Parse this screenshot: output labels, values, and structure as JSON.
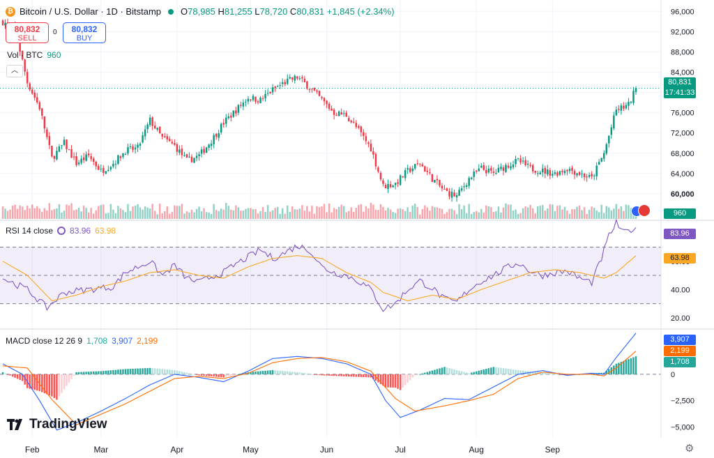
{
  "header": {
    "coin_icon": "bitcoin-icon",
    "title": "Bitcoin / U.S. Dollar · 1D · Bitstamp",
    "o_label": "O",
    "o": "78,985",
    "h_label": "H",
    "h": "81,255",
    "l_label": "L",
    "l": "78,720",
    "c_label": "C",
    "c": "80,831",
    "change": "+1,845 (+2.34%)"
  },
  "trade": {
    "sell_price": "80,832",
    "sell_label": "SELL",
    "spread": "0",
    "buy_price": "80,832",
    "buy_label": "BUY"
  },
  "volume": {
    "label": "Vol · BTC",
    "value": "960"
  },
  "rsi": {
    "label": "RSI 14 close",
    "value1": "83.96",
    "value2": "63.98"
  },
  "macd": {
    "label": "MACD close 12 26 9",
    "hist": "1,708",
    "macd": "3,907",
    "signal": "2,199"
  },
  "price_tag": {
    "price": "80,831",
    "countdown": "17:41:33"
  },
  "logo": "TradingView",
  "colors": {
    "up": "#089981",
    "down": "#f23645",
    "rsi": "#7e57c2",
    "rsi_ma": "#f9a825",
    "macd": "#2962ff",
    "signal": "#ff6d00"
  },
  "chart_data": [
    {
      "type": "candlestick",
      "title": "Bitcoin / U.S. Dollar · 1D · Bitstamp",
      "x": [
        "Feb",
        "Mar",
        "Apr",
        "May",
        "Jun",
        "Jul",
        "Aug",
        "Sep"
      ],
      "y_ticks": [
        60000,
        64000,
        68000,
        72000,
        76000,
        80000,
        84000,
        88000,
        92000,
        96000
      ],
      "y_tick_labels": [
        "60,000",
        "64,000",
        "68,000",
        "72,000",
        "76,000",
        "80,000",
        "84,000",
        "88,000",
        "92,000",
        "96,000"
      ],
      "y_range": [
        56000,
        97000
      ],
      "last_close": 80831,
      "close_path": [
        [
          0,
          94000
        ],
        [
          5,
          92500
        ],
        [
          10,
          82000
        ],
        [
          15,
          77000
        ],
        [
          20,
          67000
        ],
        [
          25,
          70000
        ],
        [
          30,
          66000
        ],
        [
          35,
          67500
        ],
        [
          40,
          64500
        ],
        [
          45,
          66000
        ],
        [
          50,
          68500
        ],
        [
          55,
          69000
        ],
        [
          60,
          74500
        ],
        [
          65,
          71000
        ],
        [
          70,
          69500
        ],
        [
          75,
          66500
        ],
        [
          80,
          67500
        ],
        [
          85,
          70500
        ],
        [
          90,
          74000
        ],
        [
          95,
          76500
        ],
        [
          100,
          79000
        ],
        [
          105,
          78500
        ],
        [
          110,
          80500
        ],
        [
          115,
          82000
        ],
        [
          120,
          83000
        ],
        [
          125,
          81000
        ],
        [
          130,
          78500
        ],
        [
          135,
          76000
        ],
        [
          140,
          75500
        ],
        [
          145,
          72500
        ],
        [
          150,
          69000
        ],
        [
          155,
          61500
        ],
        [
          160,
          62000
        ],
        [
          165,
          64500
        ],
        [
          170,
          66000
        ],
        [
          175,
          63000
        ],
        [
          180,
          60500
        ],
        [
          185,
          59500
        ],
        [
          190,
          63000
        ],
        [
          195,
          65000
        ],
        [
          200,
          64000
        ],
        [
          205,
          65500
        ],
        [
          210,
          66500
        ],
        [
          215,
          65000
        ],
        [
          220,
          64500
        ],
        [
          225,
          64000
        ],
        [
          230,
          65000
        ],
        [
          235,
          64000
        ],
        [
          240,
          63000
        ],
        [
          245,
          68000
        ],
        [
          250,
          76500
        ],
        [
          255,
          77500
        ],
        [
          258,
          80831
        ]
      ],
      "volume_last": 960
    },
    {
      "type": "line",
      "title": "RSI 14 close",
      "y_ticks": [
        20,
        40,
        60,
        80
      ],
      "y_tick_labels": [
        "20.00",
        "40.00",
        "60.00",
        "80.00"
      ],
      "y_range": [
        14,
        88
      ],
      "bands": [
        30,
        70
      ],
      "midline": 50,
      "series": [
        {
          "name": "RSI",
          "last": 83.96,
          "points": [
            [
              0,
              48
            ],
            [
              10,
              40
            ],
            [
              18,
              27
            ],
            [
              25,
              38
            ],
            [
              35,
              40
            ],
            [
              45,
              42
            ],
            [
              50,
              52
            ],
            [
              55,
              56
            ],
            [
              60,
              60
            ],
            [
              65,
              50
            ],
            [
              70,
              57
            ],
            [
              75,
              48
            ],
            [
              80,
              45
            ],
            [
              85,
              49
            ],
            [
              90,
              52
            ],
            [
              95,
              58
            ],
            [
              100,
              63
            ],
            [
              105,
              68
            ],
            [
              110,
              62
            ],
            [
              115,
              66
            ],
            [
              120,
              71
            ],
            [
              125,
              68
            ],
            [
              130,
              56
            ],
            [
              135,
              52
            ],
            [
              140,
              50
            ],
            [
              145,
              46
            ],
            [
              150,
              40
            ],
            [
              155,
              26
            ],
            [
              160,
              30
            ],
            [
              165,
              40
            ],
            [
              170,
              46
            ],
            [
              175,
              41
            ],
            [
              180,
              33
            ],
            [
              185,
              31
            ],
            [
              190,
              40
            ],
            [
              195,
              46
            ],
            [
              200,
              50
            ],
            [
              205,
              55
            ],
            [
              210,
              59
            ],
            [
              215,
              53
            ],
            [
              220,
              50
            ],
            [
              225,
              52
            ],
            [
              230,
              53
            ],
            [
              235,
              48
            ],
            [
              240,
              45
            ],
            [
              244,
              62
            ],
            [
              247,
              78
            ],
            [
              250,
              87
            ],
            [
              253,
              80
            ],
            [
              258,
              83.96
            ]
          ]
        },
        {
          "name": "RSI MA",
          "last": 63.98,
          "points": [
            [
              0,
              60
            ],
            [
              10,
              50
            ],
            [
              20,
              32
            ],
            [
              30,
              36
            ],
            [
              40,
              42
            ],
            [
              50,
              46
            ],
            [
              60,
              52
            ],
            [
              70,
              54
            ],
            [
              80,
              50
            ],
            [
              90,
              48
            ],
            [
              100,
              56
            ],
            [
              110,
              62
            ],
            [
              120,
              64
            ],
            [
              130,
              62
            ],
            [
              140,
              52
            ],
            [
              150,
              45
            ],
            [
              155,
              38
            ],
            [
              165,
              32
            ],
            [
              175,
              36
            ],
            [
              185,
              33
            ],
            [
              195,
              40
            ],
            [
              205,
              46
            ],
            [
              215,
              52
            ],
            [
              225,
              54
            ],
            [
              235,
              52
            ],
            [
              245,
              48
            ],
            [
              250,
              52
            ],
            [
              258,
              63.98
            ]
          ]
        }
      ]
    },
    {
      "type": "line",
      "title": "MACD close 12 26 9",
      "y_ticks": [
        -5000,
        -2500,
        0
      ],
      "y_tick_labels": [
        "−5,000",
        "−2,500",
        "0"
      ],
      "y_range": [
        -5900,
        4300
      ],
      "series": [
        {
          "name": "MACD",
          "last": 3907,
          "points": [
            [
              0,
              1000
            ],
            [
              8,
              0
            ],
            [
              15,
              -2500
            ],
            [
              22,
              -5300
            ],
            [
              30,
              -4600
            ],
            [
              40,
              -3500
            ],
            [
              50,
              -2300
            ],
            [
              60,
              -1000
            ],
            [
              70,
              0
            ],
            [
              80,
              -300
            ],
            [
              90,
              -700
            ],
            [
              100,
              300
            ],
            [
              110,
              1500
            ],
            [
              120,
              1700
            ],
            [
              130,
              1500
            ],
            [
              140,
              1000
            ],
            [
              150,
              0
            ],
            [
              156,
              -2500
            ],
            [
              162,
              -4100
            ],
            [
              170,
              -3400
            ],
            [
              180,
              -2300
            ],
            [
              190,
              -2400
            ],
            [
              200,
              -1200
            ],
            [
              210,
              0
            ],
            [
              220,
              350
            ],
            [
              230,
              -100
            ],
            [
              240,
              100
            ],
            [
              245,
              0
            ],
            [
              250,
              1600
            ],
            [
              258,
              3907
            ]
          ]
        },
        {
          "name": "Signal",
          "last": 2199,
          "points": [
            [
              0,
              800
            ],
            [
              10,
              600
            ],
            [
              20,
              -2400
            ],
            [
              30,
              -4800
            ],
            [
              40,
              -3800
            ],
            [
              50,
              -2800
            ],
            [
              60,
              -1600
            ],
            [
              70,
              -400
            ],
            [
              80,
              -200
            ],
            [
              90,
              -400
            ],
            [
              100,
              100
            ],
            [
              110,
              1100
            ],
            [
              120,
              1500
            ],
            [
              130,
              1600
            ],
            [
              140,
              1200
            ],
            [
              150,
              300
            ],
            [
              160,
              -2300
            ],
            [
              168,
              -3500
            ],
            [
              180,
              -3000
            ],
            [
              190,
              -2500
            ],
            [
              200,
              -1900
            ],
            [
              210,
              -400
            ],
            [
              220,
              200
            ],
            [
              230,
              0
            ],
            [
              240,
              0
            ],
            [
              245,
              -150
            ],
            [
              250,
              600
            ],
            [
              258,
              2199
            ]
          ]
        },
        {
          "name": "Histogram",
          "last": 1708
        }
      ]
    }
  ],
  "x_axis": {
    "labels": [
      "Feb",
      "Mar",
      "Apr",
      "May",
      "Jun",
      "Jul",
      "Aug",
      "Sep"
    ]
  },
  "icons": {
    "settings": "gear-icon",
    "collapse": "chevron-up-icon",
    "flags": "currency-flags-icon"
  }
}
